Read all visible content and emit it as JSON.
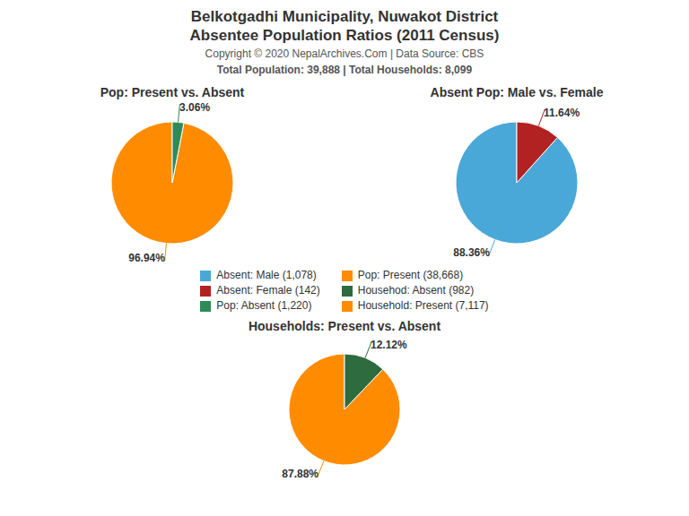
{
  "title": "Belkotgadhi Municipality, Nuwakot District",
  "subtitle": "Absentee Population Ratios (2011 Census)",
  "annotations": [
    "Copyright © 2020 NepalArchives.Com | Data Source: CBS",
    "Total Population: 39,888 | Total Households: 8,099"
  ],
  "legend_entries": [
    {
      "name": "Absent: Male (1,078)",
      "color": "#4AA8D8"
    },
    {
      "name": "Absent: Female (142)",
      "color": "#B22222"
    },
    {
      "name": "Pop: Absent (1,220)",
      "color": "#2E8B57"
    },
    {
      "name": "Pop: Present (38,668)",
      "color": "#FF8C00"
    },
    {
      "name": "Househod: Absent (982)",
      "color": "#2E6B3E"
    },
    {
      "name": "Household: Present (7,117)",
      "color": "#FF8C00"
    }
  ],
  "chart_data": [
    {
      "type": "pie",
      "title": "Pop: Present vs. Absent",
      "values": [
        96.94,
        3.06
      ],
      "value_labels": [
        "96.94%",
        "3.06%"
      ],
      "colors": [
        "#FF8C00",
        "#2E8B57"
      ],
      "data_labels": true
    },
    {
      "type": "pie",
      "title": "Absent Pop: Male vs. Female",
      "values": [
        88.36,
        11.64
      ],
      "value_labels": [
        "88.36%",
        "11.64%"
      ],
      "colors": [
        "#4AA8D8",
        "#B22222"
      ],
      "data_labels": true
    },
    {
      "type": "pie",
      "title": "Households: Present vs. Absent",
      "values": [
        87.88,
        12.12
      ],
      "value_labels": [
        "87.88%",
        "12.12%"
      ],
      "colors": [
        "#FF8C00",
        "#2E6B3E"
      ],
      "data_labels": true
    }
  ]
}
